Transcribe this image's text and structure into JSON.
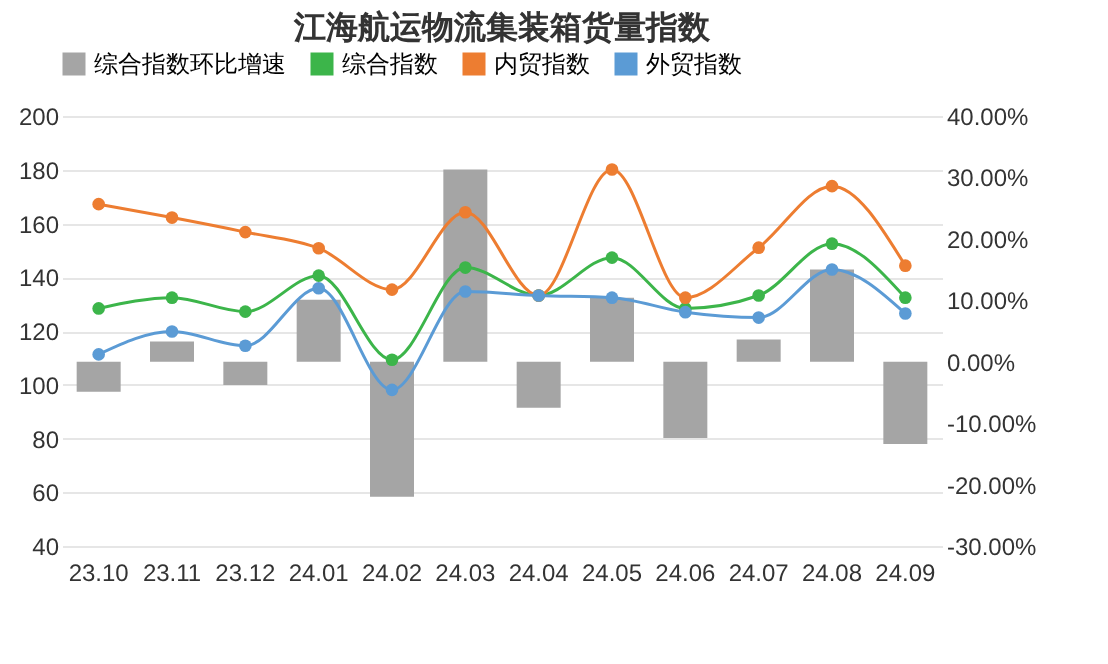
{
  "chart_data": {
    "type": "line",
    "title": "江海航运物流集装箱货量指数",
    "categories": [
      "23.10",
      "23.11",
      "23.12",
      "24.01",
      "24.02",
      "24.03",
      "24.04",
      "24.05",
      "24.06",
      "24.07",
      "24.08",
      "24.09"
    ],
    "series": [
      {
        "name": "综合指数环比增速",
        "type": "bar",
        "axis": "y2",
        "color": "#a5a5a5",
        "values": [
          -4.9,
          3.3,
          -3.8,
          10.1,
          -22.0,
          31.3,
          -7.5,
          10.4,
          -12.4,
          3.6,
          15.0,
          -13.4
        ]
      },
      {
        "name": "综合指数",
        "color": "#3cb54a",
        "values": [
          128.4,
          132.4,
          127.2,
          140.6,
          109.3,
          143.6,
          133.2,
          147.3,
          128.4,
          133.2,
          152.5,
          132.4
        ]
      },
      {
        "name": "内贸指数",
        "color": "#ed7d31",
        "values": [
          167.2,
          162.2,
          156.8,
          150.8,
          135.4,
          164.2,
          133.2,
          180.1,
          132.4,
          151.0,
          173.9,
          144.3
        ]
      },
      {
        "name": "外贸指数",
        "color": "#5b9bd5",
        "values": [
          111.3,
          119.8,
          114.5,
          135.9,
          98.1,
          134.7,
          133.2,
          132.4,
          127.0,
          125.0,
          142.9,
          126.5
        ]
      }
    ],
    "ylim": [
      40,
      200
    ],
    "yticks": [
      40,
      60,
      80,
      100,
      120,
      140,
      160,
      180,
      200
    ],
    "y2lim": [
      -30,
      40
    ],
    "y2ticks": [
      {
        "value": -30,
        "label": "-30.00%"
      },
      {
        "value": -20,
        "label": "-20.00%"
      },
      {
        "value": -10,
        "label": "-10.00%"
      },
      {
        "value": 0,
        "label": "0.00%"
      },
      {
        "value": 10,
        "label": "10.00%"
      },
      {
        "value": 20,
        "label": "20.00%"
      },
      {
        "value": 30,
        "label": "30.00%"
      },
      {
        "value": 40,
        "label": "40.00%"
      }
    ],
    "grid": "y",
    "legend": "top",
    "marker": "circle",
    "line_style": "solid"
  }
}
